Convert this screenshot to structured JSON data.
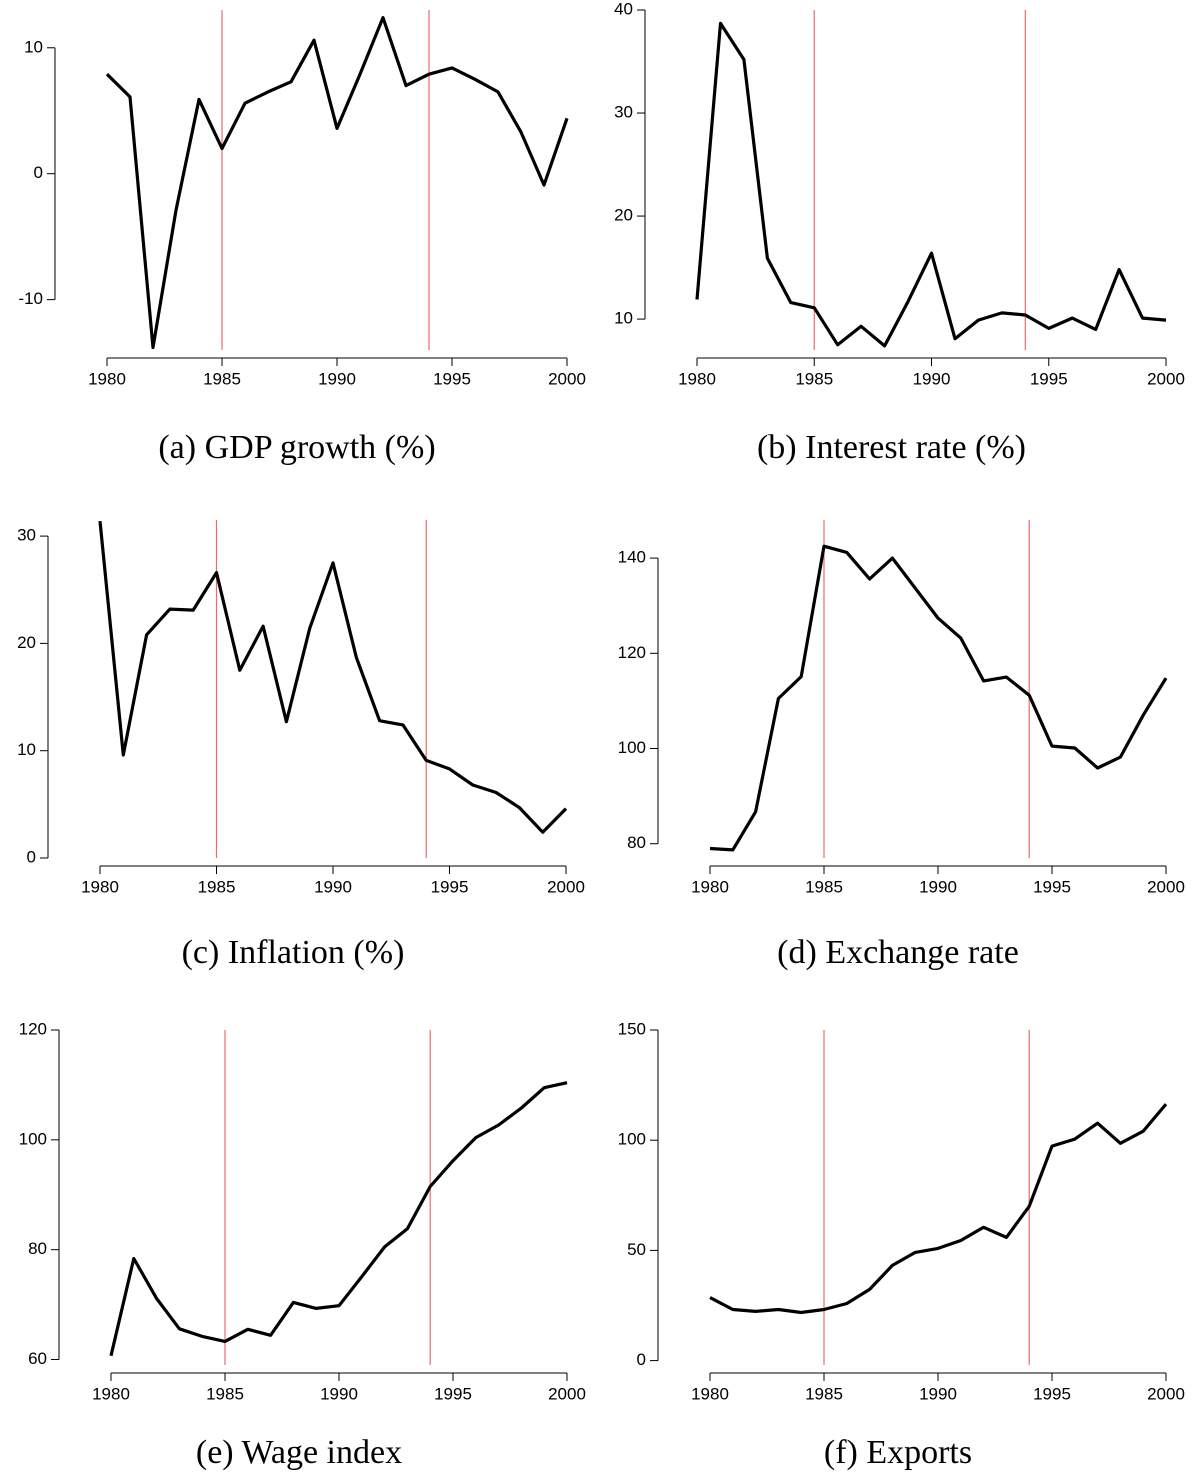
{
  "chart_data": [
    {
      "type": "line",
      "title": "(a) GDP growth (%)",
      "x": [
        1980,
        1981,
        1982,
        1983,
        1984,
        1985,
        1986,
        1987,
        1988,
        1989,
        1990,
        1991,
        1992,
        1993,
        1994,
        1995,
        1996,
        1997,
        1998,
        1999,
        2000
      ],
      "values": [
        7.9,
        6.1,
        -13.8,
        -2.9,
        5.9,
        2.0,
        5.6,
        6.5,
        7.3,
        10.6,
        3.6,
        7.9,
        12.4,
        7.0,
        7.9,
        8.4,
        7.5,
        6.5,
        3.3,
        -0.9,
        4.4
      ],
      "color": "#000000",
      "xlim": [
        1980,
        2000
      ],
      "xticks": [
        1980,
        1985,
        1990,
        1995,
        2000
      ],
      "ylim": [
        -14,
        13
      ],
      "yticks": [
        -10,
        0,
        10
      ],
      "vlines": [
        1985,
        1994
      ],
      "vline_color": "#ef6b6b"
    },
    {
      "type": "line",
      "title": "(b) Interest rate (%)",
      "x": [
        1980,
        1981,
        1982,
        1983,
        1984,
        1985,
        1986,
        1987,
        1988,
        1989,
        1990,
        1991,
        1992,
        1993,
        1994,
        1995,
        1996,
        1997,
        1998,
        1999,
        2000
      ],
      "values": [
        11.9,
        38.7,
        35.2,
        15.9,
        11.6,
        11.1,
        7.5,
        9.3,
        7.4,
        11.7,
        16.4,
        8.1,
        9.9,
        10.6,
        10.4,
        9.1,
        10.1,
        9.0,
        14.8,
        10.1,
        9.9
      ],
      "color": "#000000",
      "xlim": [
        1980,
        2000
      ],
      "xticks": [
        1980,
        1985,
        1990,
        1995,
        2000
      ],
      "ylim": [
        7,
        40
      ],
      "yticks": [
        10,
        20,
        30,
        40
      ],
      "vlines": [
        1985,
        1994
      ],
      "vline_color": "#ef6b6b"
    },
    {
      "type": "line",
      "title": "(c) Inflation (%)",
      "x": [
        1980,
        1981,
        1982,
        1983,
        1984,
        1985,
        1986,
        1987,
        1988,
        1989,
        1990,
        1991,
        1992,
        1993,
        1994,
        1995,
        1996,
        1997,
        1998,
        1999,
        2000
      ],
      "values": [
        31.4,
        9.6,
        20.8,
        23.2,
        23.1,
        26.6,
        17.5,
        21.6,
        12.7,
        21.4,
        27.5,
        18.7,
        12.8,
        12.4,
        9.1,
        8.3,
        6.8,
        6.1,
        4.7,
        2.4,
        4.6
      ],
      "color": "#000000",
      "xlim": [
        1980,
        2000
      ],
      "xticks": [
        1980,
        1985,
        1990,
        1995,
        2000
      ],
      "ylim": [
        0,
        31.5
      ],
      "yticks": [
        0,
        10,
        20,
        30
      ],
      "vlines": [
        1985,
        1994
      ],
      "vline_color": "#ef6b6b"
    },
    {
      "type": "line",
      "title": "(d) Exchange rate",
      "x": [
        1980,
        1981,
        1982,
        1983,
        1984,
        1985,
        1986,
        1987,
        1988,
        1989,
        1990,
        1991,
        1992,
        1993,
        1994,
        1995,
        1996,
        1997,
        1998,
        1999,
        2000
      ],
      "values": [
        79.0,
        78.7,
        86.7,
        110.5,
        115.1,
        142.5,
        141.2,
        135.6,
        140.0,
        133.7,
        127.4,
        123.2,
        114.2,
        115.0,
        111.2,
        100.5,
        100.1,
        95.9,
        98.2,
        107.0,
        114.8
      ],
      "color": "#000000",
      "xlim": [
        1980,
        2000
      ],
      "xticks": [
        1980,
        1985,
        1990,
        1995,
        2000
      ],
      "ylim": [
        77,
        148
      ],
      "yticks": [
        80,
        100,
        120,
        140
      ],
      "vlines": [
        1985,
        1994
      ],
      "vline_color": "#ef6b6b"
    },
    {
      "type": "line",
      "title": "(e) Wage index",
      "x": [
        1980,
        1981,
        1982,
        1983,
        1984,
        1985,
        1986,
        1987,
        1988,
        1989,
        1990,
        1991,
        1992,
        1993,
        1994,
        1995,
        1996,
        1997,
        1998,
        1999,
        2000
      ],
      "values": [
        60.7,
        78.4,
        71.1,
        65.6,
        64.2,
        63.3,
        65.5,
        64.4,
        70.4,
        69.3,
        69.8,
        75.1,
        80.5,
        83.8,
        91.5,
        96.2,
        100.4,
        102.7,
        105.8,
        109.5,
        110.4
      ],
      "color": "#000000",
      "xlim": [
        1980,
        2000
      ],
      "xticks": [
        1980,
        1985,
        1990,
        1995,
        2000
      ],
      "ylim": [
        59,
        120
      ],
      "yticks": [
        60,
        80,
        100,
        120
      ],
      "vlines": [
        1985,
        1994
      ],
      "vline_color": "#ef6b6b"
    },
    {
      "type": "line",
      "title": "(f) Exports",
      "x": [
        1980,
        1981,
        1982,
        1983,
        1984,
        1985,
        1986,
        1987,
        1988,
        1989,
        1990,
        1991,
        1992,
        1993,
        1994,
        1995,
        1996,
        1997,
        1998,
        1999,
        2000
      ],
      "values": [
        28.6,
        23.2,
        22.3,
        23.2,
        21.8,
        23.2,
        25.9,
        32.3,
        43.2,
        49.1,
        50.9,
        54.5,
        60.5,
        55.9,
        70.0,
        97.3,
        100.5,
        107.7,
        98.6,
        104.1,
        116.4
      ],
      "color": "#000000",
      "xlim": [
        1980,
        2000
      ],
      "xticks": [
        1980,
        1985,
        1990,
        1995,
        2000
      ],
      "ylim": [
        -2,
        150
      ],
      "yticks": [
        0,
        50,
        100,
        150
      ],
      "vlines": [
        1985,
        1994
      ],
      "vline_color": "#ef6b6b"
    }
  ]
}
